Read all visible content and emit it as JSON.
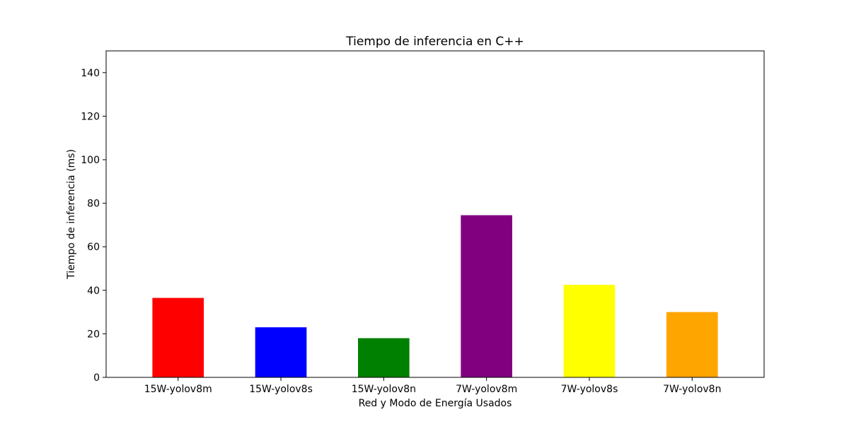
{
  "chart_data": {
    "type": "bar",
    "title": "Tiempo de inferencia en C++",
    "xlabel": "Red y Modo de Energía Usados",
    "ylabel": "Tiempo de inferencia (ms)",
    "categories": [
      "15W-yolov8m",
      "15W-yolov8s",
      "15W-yolov8n",
      "7W-yolov8m",
      "7W-yolov8s",
      "7W-yolov8n"
    ],
    "values": [
      36.5,
      23,
      18,
      74.5,
      42.5,
      30
    ],
    "colors": [
      "#ff0000",
      "#0000ff",
      "#008000",
      "#800080",
      "#ffff00",
      "#ffa500"
    ],
    "ylim": [
      0,
      150
    ],
    "yticks": [
      0,
      20,
      40,
      60,
      80,
      100,
      120,
      140
    ],
    "grid": false,
    "legend": "none"
  }
}
